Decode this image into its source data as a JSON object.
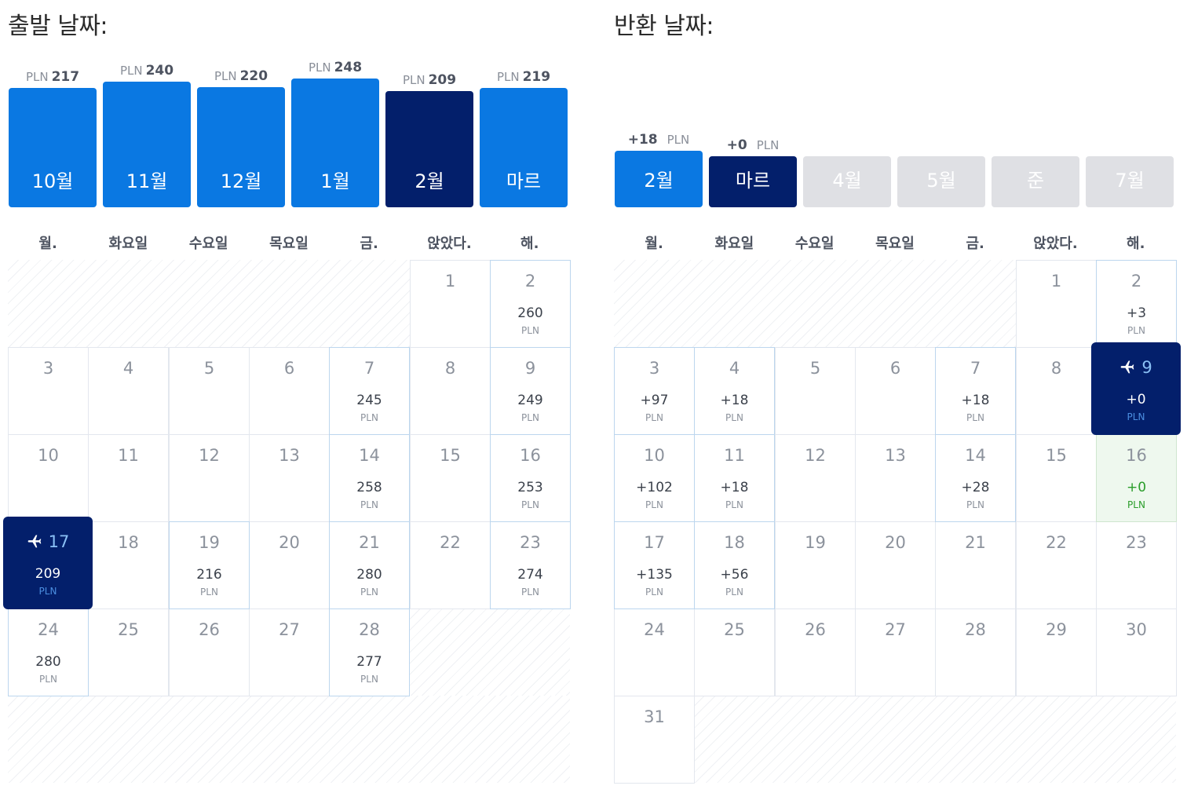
{
  "departure": {
    "title": "출발 날짜:",
    "months": [
      {
        "label": "10월",
        "currency": "PLN",
        "price": "217",
        "state": "normal"
      },
      {
        "label": "11월",
        "currency": "PLN",
        "price": "240",
        "state": "normal"
      },
      {
        "label": "12월",
        "currency": "PLN",
        "price": "220",
        "state": "normal"
      },
      {
        "label": "1월",
        "currency": "PLN",
        "price": "248",
        "state": "normal"
      },
      {
        "label": "2월",
        "currency": "PLN",
        "price": "209",
        "state": "selected"
      },
      {
        "label": "마르",
        "currency": "PLN",
        "price": "219",
        "state": "normal"
      }
    ],
    "weekdays": [
      "월.",
      "화요일",
      "수요일",
      "목요일",
      "금.",
      "앉았다.",
      "해."
    ],
    "days": [
      {
        "day": "1",
        "price": "",
        "currency": ""
      },
      {
        "day": "2",
        "price": "260",
        "currency": "PLN"
      },
      {
        "day": "3",
        "price": "",
        "currency": ""
      },
      {
        "day": "4",
        "price": "",
        "currency": ""
      },
      {
        "day": "5",
        "price": "",
        "currency": ""
      },
      {
        "day": "6",
        "price": "",
        "currency": ""
      },
      {
        "day": "7",
        "price": "245",
        "currency": "PLN"
      },
      {
        "day": "8",
        "price": "",
        "currency": ""
      },
      {
        "day": "9",
        "price": "249",
        "currency": "PLN"
      },
      {
        "day": "10",
        "price": "",
        "currency": ""
      },
      {
        "day": "11",
        "price": "",
        "currency": ""
      },
      {
        "day": "12",
        "price": "",
        "currency": ""
      },
      {
        "day": "13",
        "price": "",
        "currency": ""
      },
      {
        "day": "14",
        "price": "258",
        "currency": "PLN"
      },
      {
        "day": "15",
        "price": "",
        "currency": ""
      },
      {
        "day": "16",
        "price": "253",
        "currency": "PLN"
      },
      {
        "day": "17",
        "price": "209",
        "currency": "PLN",
        "selected": true
      },
      {
        "day": "18",
        "price": "",
        "currency": ""
      },
      {
        "day": "19",
        "price": "216",
        "currency": "PLN"
      },
      {
        "day": "20",
        "price": "",
        "currency": ""
      },
      {
        "day": "21",
        "price": "280",
        "currency": "PLN"
      },
      {
        "day": "22",
        "price": "",
        "currency": ""
      },
      {
        "day": "23",
        "price": "274",
        "currency": "PLN"
      },
      {
        "day": "24",
        "price": "280",
        "currency": "PLN"
      },
      {
        "day": "25",
        "price": "",
        "currency": ""
      },
      {
        "day": "26",
        "price": "",
        "currency": ""
      },
      {
        "day": "27",
        "price": "",
        "currency": ""
      },
      {
        "day": "28",
        "price": "277",
        "currency": "PLN"
      }
    ]
  },
  "return": {
    "title": "반환 날짜:",
    "months": [
      {
        "label": "2월",
        "delta": "+18",
        "currency": "PLN",
        "state": "normal"
      },
      {
        "label": "마르",
        "delta": "+0",
        "currency": "PLN",
        "state": "selected"
      },
      {
        "label": "4월",
        "delta": "",
        "currency": "",
        "state": "disabled"
      },
      {
        "label": "5월",
        "delta": "",
        "currency": "",
        "state": "disabled"
      },
      {
        "label": "준",
        "delta": "",
        "currency": "",
        "state": "disabled"
      },
      {
        "label": "7월",
        "delta": "",
        "currency": "",
        "state": "disabled"
      }
    ],
    "weekdays": [
      "월.",
      "화요일",
      "수요일",
      "목요일",
      "금.",
      "앉았다.",
      "해."
    ],
    "days": [
      {
        "day": "1",
        "price": "",
        "currency": ""
      },
      {
        "day": "2",
        "price": "+3",
        "currency": "PLN"
      },
      {
        "day": "3",
        "price": "+97",
        "currency": "PLN"
      },
      {
        "day": "4",
        "price": "+18",
        "currency": "PLN"
      },
      {
        "day": "5",
        "price": "",
        "currency": ""
      },
      {
        "day": "6",
        "price": "",
        "currency": ""
      },
      {
        "day": "7",
        "price": "+18",
        "currency": "PLN"
      },
      {
        "day": "8",
        "price": "",
        "currency": ""
      },
      {
        "day": "9",
        "price": "+0",
        "currency": "PLN",
        "selected": true
      },
      {
        "day": "10",
        "price": "+102",
        "currency": "PLN"
      },
      {
        "day": "11",
        "price": "+18",
        "currency": "PLN"
      },
      {
        "day": "12",
        "price": "",
        "currency": ""
      },
      {
        "day": "13",
        "price": "",
        "currency": ""
      },
      {
        "day": "14",
        "price": "+28",
        "currency": "PLN"
      },
      {
        "day": "15",
        "price": "",
        "currency": ""
      },
      {
        "day": "16",
        "price": "+0",
        "currency": "PLN",
        "highlight": "green"
      },
      {
        "day": "17",
        "price": "+135",
        "currency": "PLN"
      },
      {
        "day": "18",
        "price": "+56",
        "currency": "PLN"
      },
      {
        "day": "19",
        "price": "",
        "currency": ""
      },
      {
        "day": "20",
        "price": "",
        "currency": ""
      },
      {
        "day": "21",
        "price": "",
        "currency": ""
      },
      {
        "day": "22",
        "price": "",
        "currency": ""
      },
      {
        "day": "23",
        "price": "",
        "currency": ""
      },
      {
        "day": "24",
        "price": "",
        "currency": ""
      },
      {
        "day": "25",
        "price": "",
        "currency": ""
      },
      {
        "day": "26",
        "price": "",
        "currency": ""
      },
      {
        "day": "27",
        "price": "",
        "currency": ""
      },
      {
        "day": "28",
        "price": "",
        "currency": ""
      },
      {
        "day": "29",
        "price": "",
        "currency": ""
      },
      {
        "day": "30",
        "price": "",
        "currency": ""
      },
      {
        "day": "31",
        "price": "",
        "currency": ""
      }
    ]
  },
  "colors": {
    "month_normal": "#0a78e2",
    "month_selected": "#031f6b",
    "month_disabled": "#dfe0e4",
    "green_highlight": "#2a9d2a"
  },
  "icons": {
    "selected_day": "airplane-icon"
  }
}
